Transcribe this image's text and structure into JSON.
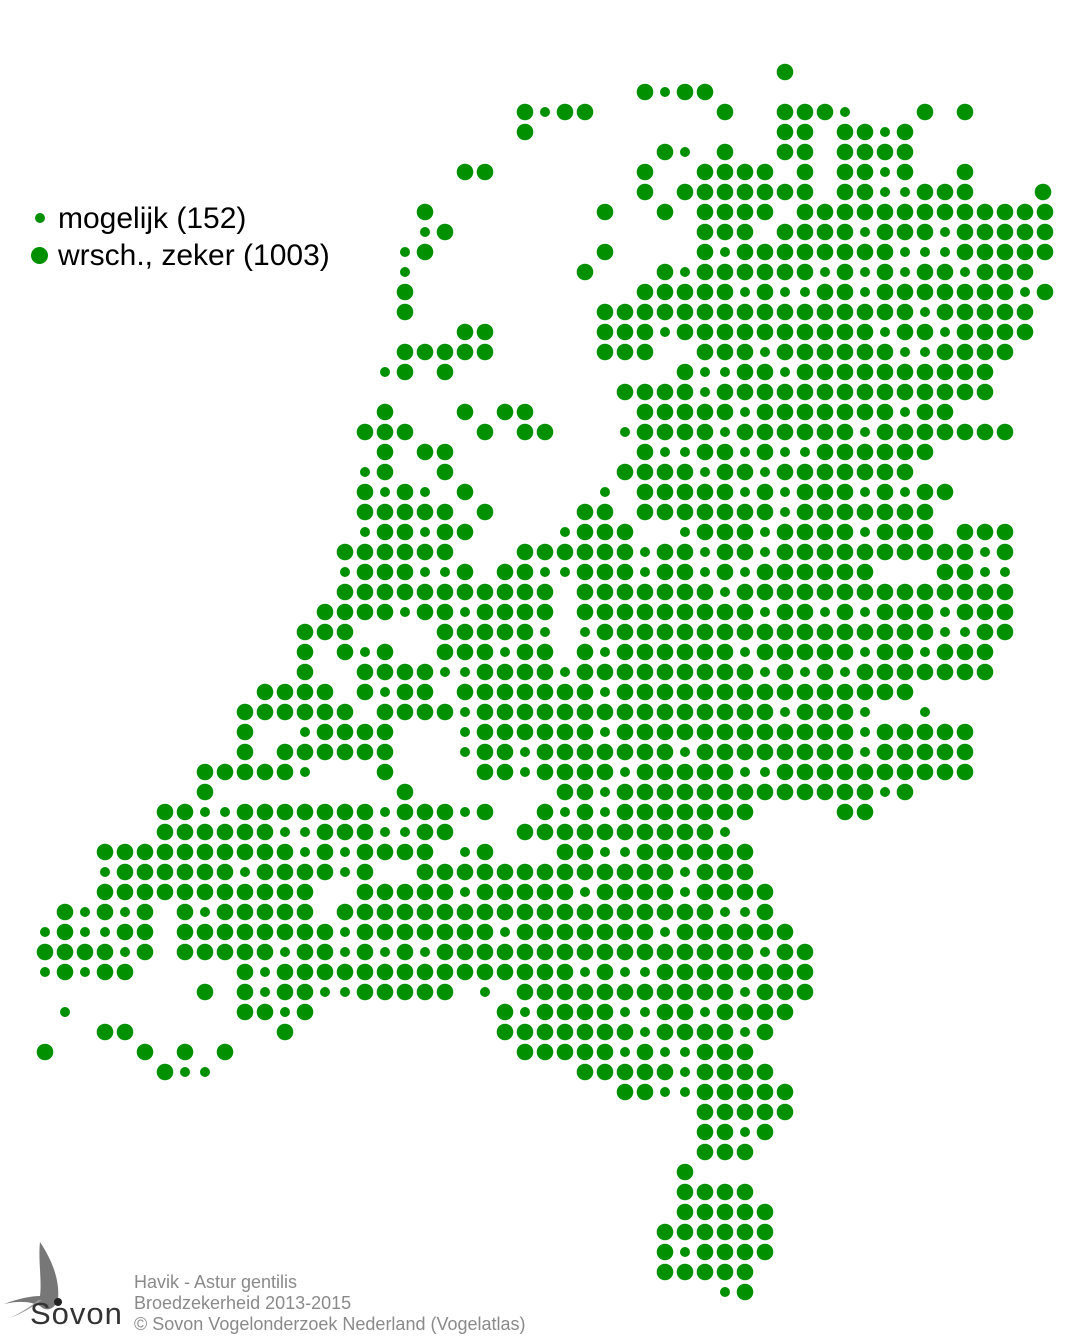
{
  "legend": {
    "items": [
      {
        "label": "mogelijk (152)",
        "category": "mogelijk",
        "count": 152,
        "symbol": "small-dot"
      },
      {
        "label": "wrsch., zeker (1003)",
        "category": "wrsch., zeker",
        "count": 1003,
        "symbol": "large-dot"
      }
    ]
  },
  "colors": {
    "dot": "#009000",
    "border": "#555555",
    "caption": "#8a8a8a"
  },
  "caption": {
    "species": "Havik - Astur gentilis",
    "subtitle": "Broedzekerheid 2013-2015",
    "copyright": "© Sovon Vogelonderzoek Nederland (Vogelatlas)"
  },
  "logo": {
    "text": "Sovon"
  }
}
